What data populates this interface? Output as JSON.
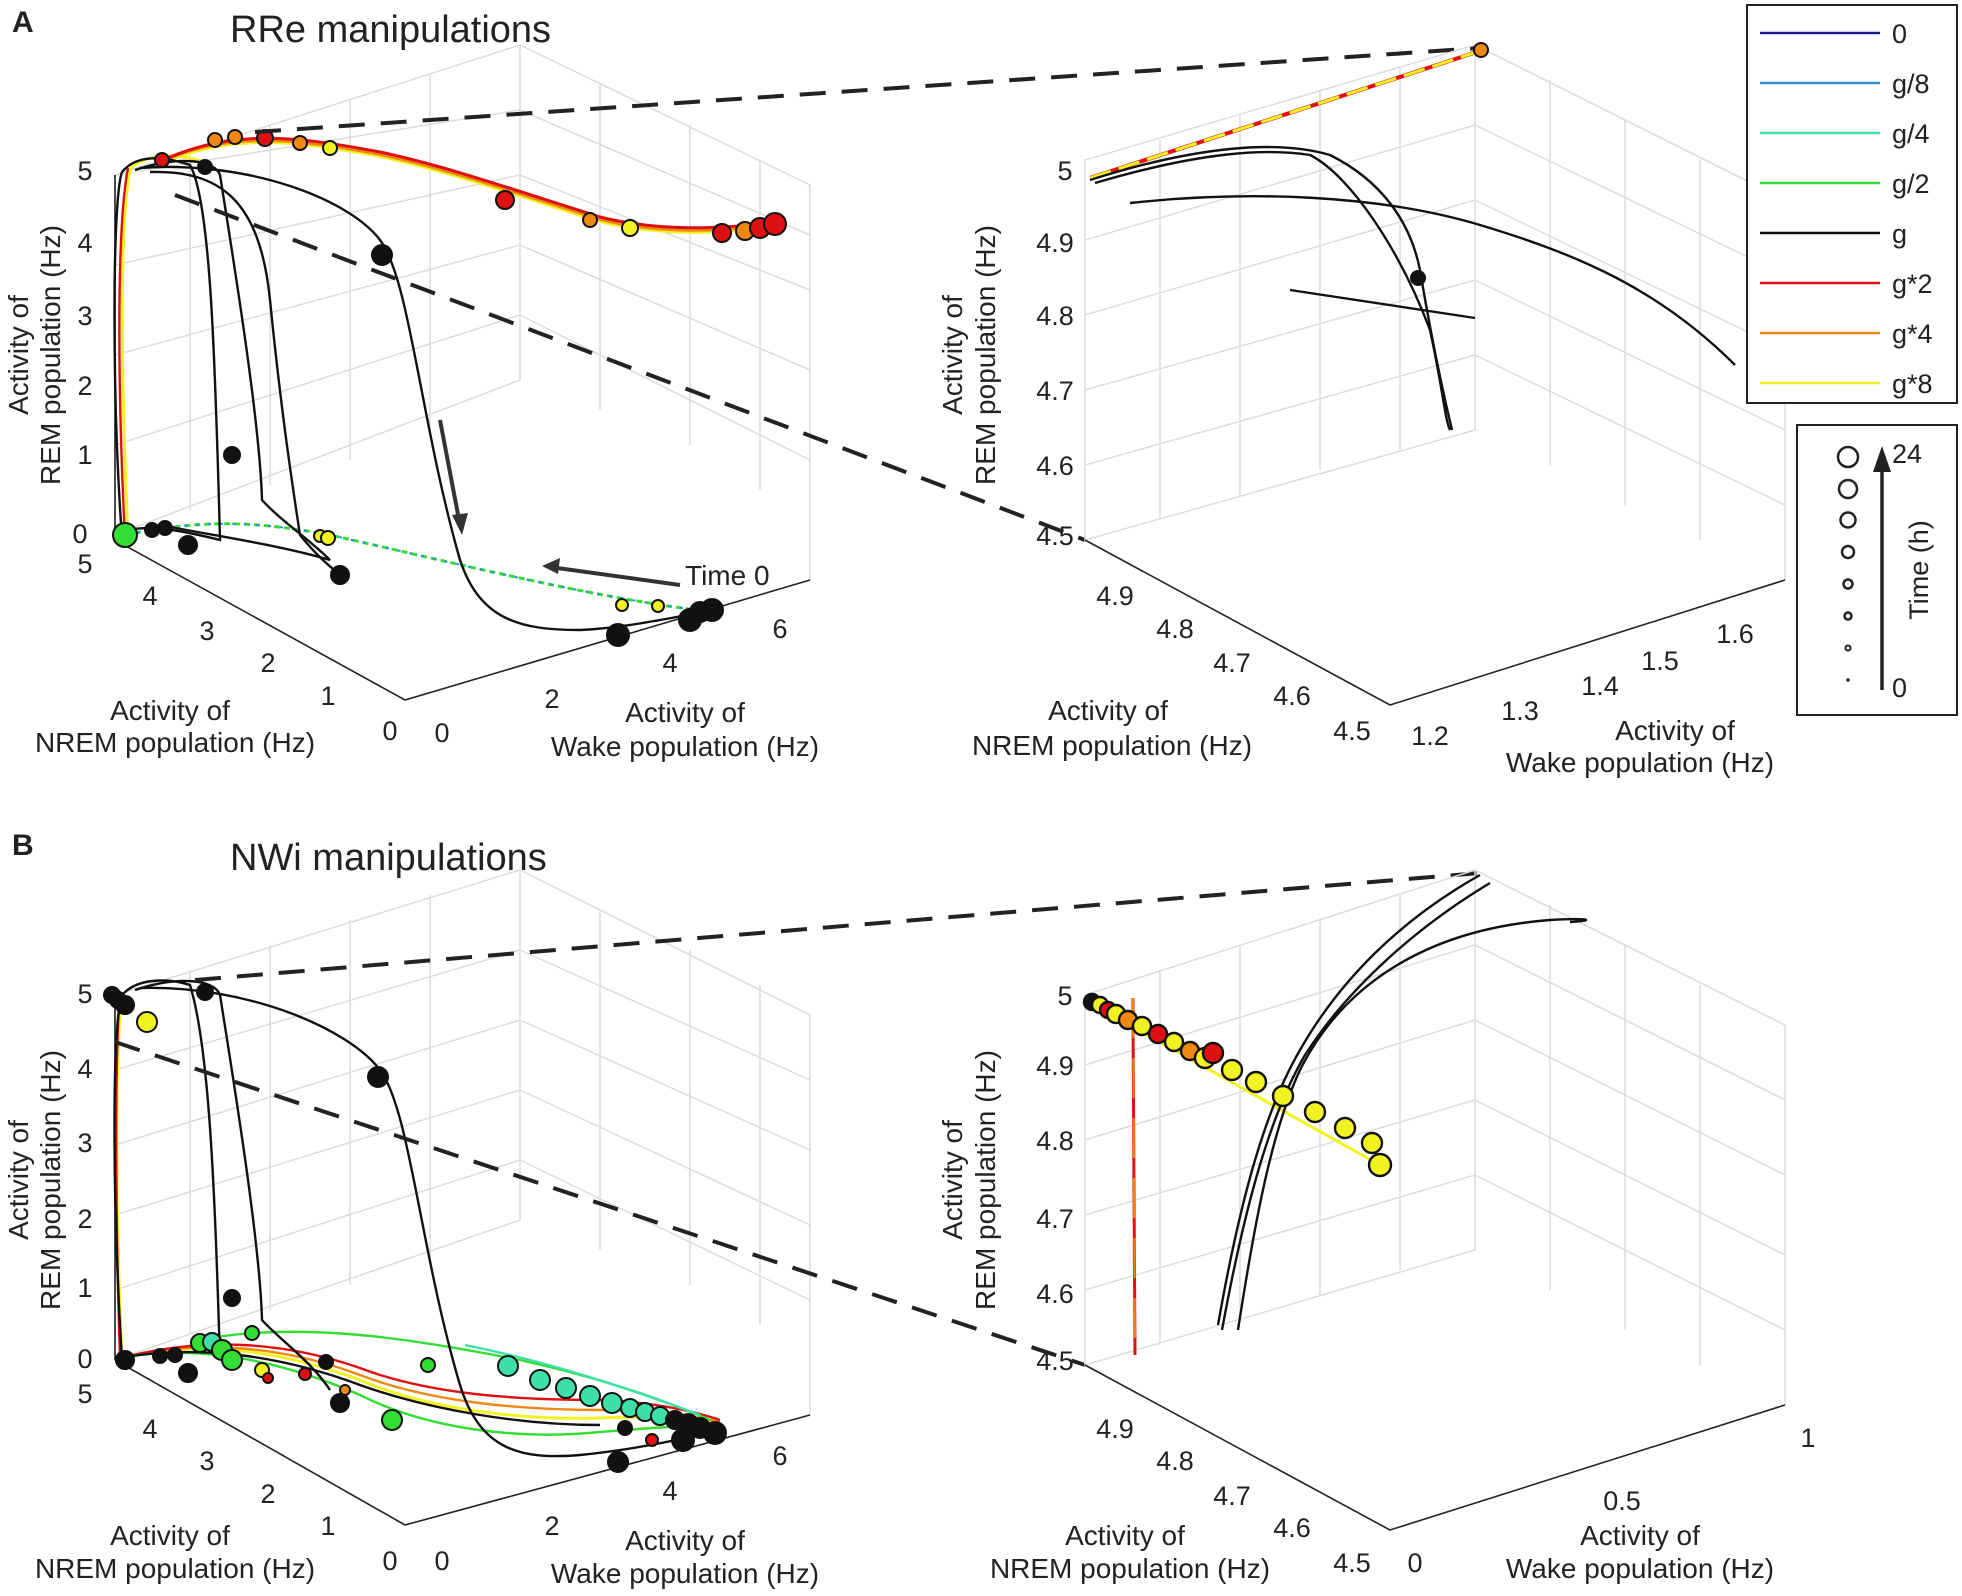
{
  "panels": [
    {
      "letter": "A",
      "title": "RRe manipulations"
    },
    {
      "letter": "B",
      "title": "NWi manipulations"
    }
  ],
  "axis_labels": {
    "rem": [
      "Activity of",
      "REM population (Hz)"
    ],
    "nrem": [
      "Activity of",
      "NREM population (Hz)"
    ],
    "wake": [
      "Activity of",
      "Wake population (Hz)"
    ]
  },
  "annotation": {
    "time0": "Time 0"
  },
  "legend": {
    "entries": [
      {
        "label": "0",
        "color": "#1a1a8c"
      },
      {
        "label": "g/8",
        "color": "#2f8fd8"
      },
      {
        "label": "g/4",
        "color": "#3fe0a8"
      },
      {
        "label": "g/2",
        "color": "#33dd33"
      },
      {
        "label": "g",
        "color": "#111111"
      },
      {
        "label": "g*2",
        "color": "#dd1111"
      },
      {
        "label": "g*4",
        "color": "#ee8811"
      },
      {
        "label": "g*8",
        "color": "#f2f222"
      }
    ]
  },
  "size_legend": {
    "label": "Time (h)",
    "min": "0",
    "max": "24"
  },
  "chart_data": [
    {
      "id": "A-main",
      "type": "line3d",
      "title": "RRe manipulations",
      "xlabel": "Activity of Wake population (Hz)",
      "ylabel": "Activity of NREM population (Hz)",
      "zlabel": "Activity of REM population (Hz)",
      "xticks": [
        "0",
        "2",
        "4",
        "6"
      ],
      "yticks": [
        "0",
        "1",
        "2",
        "3",
        "4",
        "5"
      ],
      "zticks": [
        "0",
        "1",
        "2",
        "3",
        "4",
        "5"
      ],
      "xlim": [
        0,
        7
      ],
      "ylim": [
        0,
        5
      ],
      "zlim": [
        0,
        5
      ],
      "series": [
        {
          "name": "g",
          "color": "#111111",
          "points": [
            [
              0.2,
              5,
              0
            ],
            [
              0.1,
              5,
              4.5
            ],
            [
              0.2,
              5,
              5.1
            ],
            [
              0.5,
              4.4,
              5.1
            ],
            [
              0.7,
              4.1,
              2.8
            ],
            [
              0.8,
              4.0,
              0.7
            ]
          ]
        },
        {
          "name": "g",
          "color": "#111111",
          "points": [
            [
              0.6,
              4.5,
              5.2
            ],
            [
              1.5,
              3.6,
              4.9
            ],
            [
              2.2,
              3.4,
              1.5
            ],
            [
              2.8,
              3.0,
              0.1
            ]
          ]
        },
        {
          "name": "g",
          "color": "#111111",
          "points": [
            [
              1.0,
              4.8,
              5.2
            ],
            [
              2.6,
              4.2,
              4.7
            ],
            [
              3.6,
              3.6,
              2.0
            ],
            [
              4.0,
              1.4,
              0.1
            ],
            [
              5.2,
              1.0,
              0.0
            ],
            [
              6.0,
              0.8,
              0.0
            ]
          ]
        },
        {
          "name": "g*2",
          "color": "#dd1111",
          "points": [
            [
              0.1,
              5,
              0
            ],
            [
              0.1,
              5,
              4.8
            ],
            [
              0.4,
              5,
              5.1
            ],
            [
              1.6,
              4.6,
              5.2
            ],
            [
              3.4,
              3.0,
              4.8
            ],
            [
              5.0,
              0.8,
              4.8
            ],
            [
              6.2,
              0.4,
              5.0
            ]
          ]
        },
        {
          "name": "g*4",
          "color": "#ee8811",
          "points": [
            [
              0.1,
              5,
              0
            ],
            [
              0.1,
              5,
              4.8
            ],
            [
              0.4,
              5,
              5.1
            ],
            [
              1.6,
              4.6,
              5.25
            ],
            [
              3.4,
              3.0,
              4.85
            ],
            [
              5.0,
              0.8,
              4.85
            ],
            [
              6.2,
              0.4,
              5.0
            ]
          ]
        },
        {
          "name": "g*8",
          "color": "#f2f222",
          "points": [
            [
              0.05,
              5,
              0
            ],
            [
              0.05,
              5,
              4.8
            ],
            [
              0.35,
              5,
              5.05
            ],
            [
              1.6,
              4.6,
              5.15
            ],
            [
              3.4,
              3.0,
              4.75
            ],
            [
              5.0,
              0.8,
              4.75
            ],
            [
              6.2,
              0.4,
              4.95
            ]
          ]
        },
        {
          "name": "g/2",
          "color": "#33dd33",
          "points": [
            [
              0.1,
              5,
              0
            ],
            [
              1.5,
              4.2,
              0.02
            ],
            [
              3.5,
              2.5,
              0.02
            ],
            [
              5.3,
              1.1,
              0.02
            ],
            [
              6.3,
              0.5,
              0.02
            ]
          ]
        }
      ]
    },
    {
      "id": "A-zoom",
      "type": "line3d",
      "xlabel": "Activity of Wake population (Hz)",
      "ylabel": "Activity of NREM population (Hz)",
      "zlabel": "Activity of REM population (Hz)",
      "xticks": [
        "1.2",
        "1.3",
        "1.4",
        "1.5",
        "1.6"
      ],
      "yticks": [
        "4.5",
        "4.6",
        "4.7",
        "4.8",
        "4.9"
      ],
      "zticks": [
        "4.5",
        "4.6",
        "4.7",
        "4.8",
        "4.9",
        "5"
      ],
      "xlim": [
        1.15,
        1.68
      ],
      "ylim": [
        4.45,
        4.95
      ],
      "zlim": [
        4.5,
        5.0
      ],
      "series": [
        {
          "name": "g*2 / g*4 / g*8",
          "color": "#f2f222",
          "points": [
            [
              1.15,
              4.95,
              5.0
            ],
            [
              1.68,
              4.45,
              5.0
            ]
          ]
        },
        {
          "name": "g",
          "color": "#111111",
          "points": [
            [
              1.16,
              4.93,
              4.99
            ],
            [
              1.3,
              4.78,
              5.02
            ],
            [
              1.45,
              4.64,
              4.82
            ],
            [
              1.5,
              4.6,
              4.62
            ]
          ]
        },
        {
          "name": "g",
          "color": "#111111",
          "points": [
            [
              1.18,
              4.9,
              4.96
            ],
            [
              1.45,
              4.68,
              4.96
            ],
            [
              1.66,
              4.47,
              4.74
            ]
          ]
        }
      ]
    },
    {
      "id": "B-main",
      "type": "line3d",
      "title": "NWi manipulations",
      "xlabel": "Activity of Wake population (Hz)",
      "ylabel": "Activity of NREM population (Hz)",
      "zlabel": "Activity of REM population (Hz)",
      "xticks": [
        "0",
        "2",
        "4",
        "6"
      ],
      "yticks": [
        "0",
        "1",
        "2",
        "3",
        "4",
        "5"
      ],
      "zticks": [
        "0",
        "1",
        "2",
        "3",
        "4",
        "5"
      ],
      "xlim": [
        0,
        7
      ],
      "ylim": [
        0,
        5
      ],
      "zlim": [
        0,
        5
      ],
      "series": [
        {
          "name": "g",
          "color": "#111111",
          "points": [
            [
              0.2,
              5,
              0
            ],
            [
              0.1,
              5,
              4.6
            ],
            [
              0.3,
              5,
              5.1
            ],
            [
              0.6,
              4.4,
              5.1
            ],
            [
              0.8,
              4.1,
              2.6
            ],
            [
              0.9,
              4.0,
              0.6
            ]
          ]
        },
        {
          "name": "g",
          "color": "#111111",
          "points": [
            [
              1.0,
              4.7,
              5.2
            ],
            [
              2.6,
              4.2,
              4.5
            ],
            [
              3.6,
              3.6,
              2.0
            ],
            [
              4.0,
              1.4,
              0.1
            ],
            [
              5.2,
              1.0,
              0.0
            ],
            [
              6.0,
              0.8,
              0.0
            ]
          ]
        },
        {
          "name": "g/2",
          "color": "#33dd33",
          "points": [
            [
              0.8,
              4.6,
              0.2
            ],
            [
              2.6,
              3.6,
              0.5
            ],
            [
              4.3,
              2.0,
              0.3
            ],
            [
              5.8,
              0.8,
              0.05
            ]
          ]
        },
        {
          "name": "g/4",
          "color": "#3fe0a8",
          "points": [
            [
              2.6,
              3.4,
              0.5
            ],
            [
              4.5,
              1.8,
              0.3
            ],
            [
              6.0,
              0.7,
              0.05
            ]
          ]
        },
        {
          "name": "g*2",
          "color": "#dd1111",
          "points": [
            [
              0.3,
              5,
              0
            ],
            [
              2.4,
              3.2,
              0.05
            ],
            [
              4.3,
              1.4,
              0.0
            ],
            [
              5.8,
              0.6,
              0.0
            ]
          ]
        },
        {
          "name": "g*4",
          "color": "#ee8811",
          "points": [
            [
              0.3,
              5,
              0
            ],
            [
              2.3,
              3.1,
              0.0
            ],
            [
              4.2,
              1.3,
              0.0
            ],
            [
              5.8,
              0.6,
              0.0
            ]
          ]
        },
        {
          "name": "g*8",
          "color": "#f2f222",
          "points": [
            [
              0.3,
              5,
              0
            ],
            [
              2.1,
              2.9,
              0.0
            ],
            [
              4.0,
              1.1,
              0.0
            ],
            [
              5.8,
              0.5,
              0.0
            ]
          ]
        }
      ]
    },
    {
      "id": "B-zoom",
      "type": "line3d",
      "xlabel": "Activity of Wake population (Hz)",
      "ylabel": "Activity of NREM population (Hz)",
      "zlabel": "Activity of REM population (Hz)",
      "xticks": [
        "0",
        "0.5",
        "1"
      ],
      "yticks": [
        "4.5",
        "4.6",
        "4.7",
        "4.8",
        "4.9"
      ],
      "zticks": [
        "4.5",
        "4.6",
        "4.7",
        "4.8",
        "4.9",
        "5"
      ],
      "xlim": [
        0,
        1
      ],
      "ylim": [
        4.45,
        4.95
      ],
      "zlim": [
        4.5,
        5.0
      ],
      "series": [
        {
          "name": "g*8",
          "color": "#f2f222",
          "points": [
            [
              0.0,
              4.95,
              5.0
            ],
            [
              0.45,
              4.55,
              4.83
            ]
          ]
        },
        {
          "name": "g*2",
          "color": "#dd1111",
          "points": [
            [
              0.02,
              4.93,
              5.0
            ],
            [
              0.02,
              4.93,
              4.5
            ]
          ]
        },
        {
          "name": "g",
          "color": "#111111",
          "points": [
            [
              0.35,
              4.5,
              4.5
            ],
            [
              0.6,
              4.55,
              5.0
            ],
            [
              0.9,
              4.5,
              5.1
            ]
          ]
        },
        {
          "name": "g",
          "color": "#111111",
          "points": [
            [
              0.38,
              4.5,
              4.5
            ],
            [
              0.65,
              4.55,
              5.0
            ],
            [
              0.95,
              4.48,
              5.1
            ]
          ]
        }
      ]
    }
  ]
}
